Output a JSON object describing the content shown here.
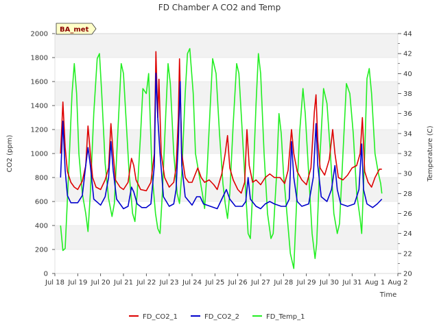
{
  "chart_data": {
    "type": "line",
    "title": "FD Chamber A CO2 and Temp",
    "badge": "BA_met",
    "xlabel": "Time",
    "ylabel_left": "CO2 (ppm)",
    "ylabel_right": "Temperature (C)",
    "x_ticks": [
      "Jul 18",
      "Jul 19",
      "Jul 20",
      "Jul 21",
      "Jul 22",
      "Jul 23",
      "Jul 24",
      "Jul 25",
      "Jul 26",
      "Jul 27",
      "Jul 28",
      "Jul 29",
      "Jul 30",
      "Jul 31",
      "Aug 1",
      "Aug 2"
    ],
    "xlim_days": [
      0,
      15
    ],
    "ylim_left": [
      0,
      2000
    ],
    "y_ticks_left": [
      "0",
      "200",
      "400",
      "600",
      "800",
      "1000",
      "1200",
      "1400",
      "1600",
      "1800",
      "2000"
    ],
    "ylim_right": [
      20,
      44
    ],
    "y_ticks_right": [
      "20",
      "22",
      "24",
      "26",
      "28",
      "30",
      "32",
      "34",
      "36",
      "38",
      "40",
      "42",
      "44"
    ],
    "grid": true,
    "legend_position": "bottom",
    "series": [
      {
        "name": "FD_CO2_1",
        "axis": "left",
        "color": "#dd0000",
        "points": [
          [
            0.25,
            1000
          ],
          [
            0.35,
            1430
          ],
          [
            0.45,
            1050
          ],
          [
            0.55,
            850
          ],
          [
            0.7,
            760
          ],
          [
            0.85,
            720
          ],
          [
            1.0,
            700
          ],
          [
            1.2,
            770
          ],
          [
            1.35,
            900
          ],
          [
            1.45,
            1230
          ],
          [
            1.55,
            1000
          ],
          [
            1.65,
            800
          ],
          [
            1.8,
            720
          ],
          [
            2.0,
            700
          ],
          [
            2.2,
            780
          ],
          [
            2.35,
            880
          ],
          [
            2.45,
            1250
          ],
          [
            2.55,
            1000
          ],
          [
            2.65,
            780
          ],
          [
            2.85,
            720
          ],
          [
            3.0,
            700
          ],
          [
            3.2,
            760
          ],
          [
            3.35,
            960
          ],
          [
            3.45,
            900
          ],
          [
            3.55,
            780
          ],
          [
            3.75,
            700
          ],
          [
            4.0,
            690
          ],
          [
            4.2,
            760
          ],
          [
            4.35,
            1000
          ],
          [
            4.42,
            1850
          ],
          [
            4.5,
            1300
          ],
          [
            4.55,
            1620
          ],
          [
            4.65,
            1000
          ],
          [
            4.8,
            800
          ],
          [
            5.0,
            720
          ],
          [
            5.2,
            760
          ],
          [
            5.3,
            880
          ],
          [
            5.4,
            1300
          ],
          [
            5.45,
            1790
          ],
          [
            5.55,
            1000
          ],
          [
            5.7,
            800
          ],
          [
            5.85,
            760
          ],
          [
            6.0,
            760
          ],
          [
            6.25,
            880
          ],
          [
            6.4,
            800
          ],
          [
            6.55,
            760
          ],
          [
            6.75,
            780
          ],
          [
            6.95,
            740
          ],
          [
            7.1,
            700
          ],
          [
            7.3,
            830
          ],
          [
            7.45,
            1000
          ],
          [
            7.55,
            1150
          ],
          [
            7.65,
            880
          ],
          [
            7.8,
            780
          ],
          [
            8.0,
            700
          ],
          [
            8.15,
            670
          ],
          [
            8.3,
            760
          ],
          [
            8.4,
            1200
          ],
          [
            8.5,
            900
          ],
          [
            8.65,
            760
          ],
          [
            8.8,
            780
          ],
          [
            9.0,
            740
          ],
          [
            9.2,
            800
          ],
          [
            9.4,
            830
          ],
          [
            9.6,
            800
          ],
          [
            9.85,
            800
          ],
          [
            10.05,
            750
          ],
          [
            10.2,
            860
          ],
          [
            10.35,
            1200
          ],
          [
            10.45,
            1000
          ],
          [
            10.6,
            850
          ],
          [
            10.8,
            780
          ],
          [
            11.0,
            740
          ],
          [
            11.2,
            880
          ],
          [
            11.35,
            1350
          ],
          [
            11.42,
            1490
          ],
          [
            11.5,
            1100
          ],
          [
            11.6,
            880
          ],
          [
            11.8,
            820
          ],
          [
            12.0,
            950
          ],
          [
            12.15,
            1200
          ],
          [
            12.25,
            1000
          ],
          [
            12.4,
            800
          ],
          [
            12.6,
            780
          ],
          [
            12.8,
            820
          ],
          [
            13.0,
            880
          ],
          [
            13.2,
            900
          ],
          [
            13.35,
            1000
          ],
          [
            13.45,
            1300
          ],
          [
            13.55,
            850
          ],
          [
            13.7,
            760
          ],
          [
            13.85,
            720
          ],
          [
            14.0,
            800
          ],
          [
            14.2,
            870
          ],
          [
            14.3,
            870
          ]
        ]
      },
      {
        "name": "FD_CO2_2",
        "axis": "left",
        "color": "#0000cc",
        "points": [
          [
            0.25,
            800
          ],
          [
            0.35,
            1270
          ],
          [
            0.45,
            860
          ],
          [
            0.55,
            650
          ],
          [
            0.7,
            590
          ],
          [
            1.0,
            590
          ],
          [
            1.2,
            650
          ],
          [
            1.35,
            900
          ],
          [
            1.45,
            1050
          ],
          [
            1.55,
            900
          ],
          [
            1.7,
            620
          ],
          [
            2.0,
            570
          ],
          [
            2.2,
            640
          ],
          [
            2.35,
            800
          ],
          [
            2.45,
            1100
          ],
          [
            2.55,
            860
          ],
          [
            2.7,
            620
          ],
          [
            3.0,
            540
          ],
          [
            3.2,
            560
          ],
          [
            3.35,
            720
          ],
          [
            3.45,
            680
          ],
          [
            3.6,
            580
          ],
          [
            3.8,
            550
          ],
          [
            4.0,
            550
          ],
          [
            4.2,
            580
          ],
          [
            4.35,
            900
          ],
          [
            4.42,
            1670
          ],
          [
            4.5,
            1300
          ],
          [
            4.6,
            1000
          ],
          [
            4.75,
            640
          ],
          [
            5.0,
            560
          ],
          [
            5.2,
            580
          ],
          [
            5.3,
            700
          ],
          [
            5.4,
            1100
          ],
          [
            5.48,
            1600
          ],
          [
            5.55,
            900
          ],
          [
            5.7,
            640
          ],
          [
            6.0,
            570
          ],
          [
            6.2,
            640
          ],
          [
            6.35,
            640
          ],
          [
            6.5,
            580
          ],
          [
            6.8,
            560
          ],
          [
            7.1,
            540
          ],
          [
            7.35,
            640
          ],
          [
            7.5,
            700
          ],
          [
            7.65,
            620
          ],
          [
            7.9,
            560
          ],
          [
            8.2,
            560
          ],
          [
            8.35,
            600
          ],
          [
            8.45,
            800
          ],
          [
            8.55,
            620
          ],
          [
            8.8,
            560
          ],
          [
            9.0,
            540
          ],
          [
            9.2,
            580
          ],
          [
            9.4,
            600
          ],
          [
            9.6,
            580
          ],
          [
            9.9,
            560
          ],
          [
            10.1,
            560
          ],
          [
            10.25,
            620
          ],
          [
            10.35,
            1100
          ],
          [
            10.45,
            800
          ],
          [
            10.6,
            600
          ],
          [
            10.8,
            560
          ],
          [
            11.1,
            580
          ],
          [
            11.3,
            800
          ],
          [
            11.42,
            1250
          ],
          [
            11.5,
            900
          ],
          [
            11.65,
            640
          ],
          [
            11.9,
            600
          ],
          [
            12.1,
            700
          ],
          [
            12.25,
            900
          ],
          [
            12.35,
            700
          ],
          [
            12.5,
            580
          ],
          [
            12.8,
            560
          ],
          [
            13.1,
            580
          ],
          [
            13.3,
            700
          ],
          [
            13.42,
            1080
          ],
          [
            13.5,
            700
          ],
          [
            13.65,
            580
          ],
          [
            13.9,
            550
          ],
          [
            14.1,
            580
          ],
          [
            14.3,
            620
          ]
        ]
      },
      {
        "name": "FD_Temp_1",
        "axis": "right",
        "color": "#22ee22",
        "points": [
          [
            0.25,
            24.8
          ],
          [
            0.35,
            22.3
          ],
          [
            0.45,
            22.5
          ],
          [
            0.6,
            30
          ],
          [
            0.75,
            38
          ],
          [
            0.85,
            41
          ],
          [
            0.95,
            38
          ],
          [
            1.05,
            32
          ],
          [
            1.2,
            28
          ],
          [
            1.35,
            26
          ],
          [
            1.45,
            24.2
          ],
          [
            1.55,
            28
          ],
          [
            1.7,
            36
          ],
          [
            1.85,
            41.5
          ],
          [
            1.95,
            42
          ],
          [
            2.05,
            38
          ],
          [
            2.2,
            31
          ],
          [
            2.35,
            27.5
          ],
          [
            2.5,
            25.7
          ],
          [
            2.6,
            27
          ],
          [
            2.75,
            34
          ],
          [
            2.9,
            41
          ],
          [
            3.0,
            40
          ],
          [
            3.1,
            36
          ],
          [
            3.25,
            30
          ],
          [
            3.4,
            26
          ],
          [
            3.5,
            25.2
          ],
          [
            3.6,
            28
          ],
          [
            3.75,
            34
          ],
          [
            3.85,
            38.5
          ],
          [
            4.0,
            38
          ],
          [
            4.1,
            40
          ],
          [
            4.25,
            30
          ],
          [
            4.4,
            26
          ],
          [
            4.5,
            24.5
          ],
          [
            4.6,
            24
          ],
          [
            4.7,
            28
          ],
          [
            4.85,
            36
          ],
          [
            4.95,
            41
          ],
          [
            5.05,
            39
          ],
          [
            5.2,
            32
          ],
          [
            5.35,
            28
          ],
          [
            5.45,
            27
          ],
          [
            5.55,
            30
          ],
          [
            5.7,
            38
          ],
          [
            5.8,
            42
          ],
          [
            5.9,
            42.5
          ],
          [
            6.05,
            38
          ],
          [
            6.15,
            32
          ],
          [
            6.3,
            30
          ],
          [
            6.45,
            28
          ],
          [
            6.55,
            26.5
          ],
          [
            6.65,
            30
          ],
          [
            6.8,
            37
          ],
          [
            6.9,
            41.5
          ],
          [
            7.05,
            40
          ],
          [
            7.2,
            34
          ],
          [
            7.35,
            29
          ],
          [
            7.45,
            27
          ],
          [
            7.55,
            25.5
          ],
          [
            7.65,
            28
          ],
          [
            7.8,
            35
          ],
          [
            7.95,
            41
          ],
          [
            8.05,
            40
          ],
          [
            8.2,
            34
          ],
          [
            8.35,
            28
          ],
          [
            8.45,
            24
          ],
          [
            8.55,
            23.5
          ],
          [
            8.65,
            28
          ],
          [
            8.8,
            37
          ],
          [
            8.9,
            42
          ],
          [
            9.0,
            40
          ],
          [
            9.15,
            32
          ],
          [
            9.3,
            26
          ],
          [
            9.45,
            23.5
          ],
          [
            9.55,
            24
          ],
          [
            9.7,
            30
          ],
          [
            9.8,
            36
          ],
          [
            9.9,
            34
          ],
          [
            10.0,
            30
          ],
          [
            10.15,
            26
          ],
          [
            10.3,
            22
          ],
          [
            10.45,
            20.5
          ],
          [
            10.55,
            26
          ],
          [
            10.7,
            34
          ],
          [
            10.85,
            38.5
          ],
          [
            10.95,
            36
          ],
          [
            11.1,
            30
          ],
          [
            11.25,
            24
          ],
          [
            11.38,
            21.5
          ],
          [
            11.45,
            23
          ],
          [
            11.6,
            32
          ],
          [
            11.75,
            38.5
          ],
          [
            11.9,
            37
          ],
          [
            12.05,
            32
          ],
          [
            12.2,
            26
          ],
          [
            12.35,
            24
          ],
          [
            12.45,
            25
          ],
          [
            12.6,
            32
          ],
          [
            12.75,
            39
          ],
          [
            12.9,
            38
          ],
          [
            13.05,
            34
          ],
          [
            13.2,
            28
          ],
          [
            13.35,
            25.5
          ],
          [
            13.42,
            24
          ],
          [
            13.55,
            32
          ],
          [
            13.65,
            39.5
          ],
          [
            13.75,
            40.5
          ],
          [
            13.85,
            38
          ],
          [
            14.0,
            32
          ],
          [
            14.15,
            30
          ],
          [
            14.25,
            29
          ],
          [
            14.3,
            28
          ]
        ]
      }
    ]
  }
}
